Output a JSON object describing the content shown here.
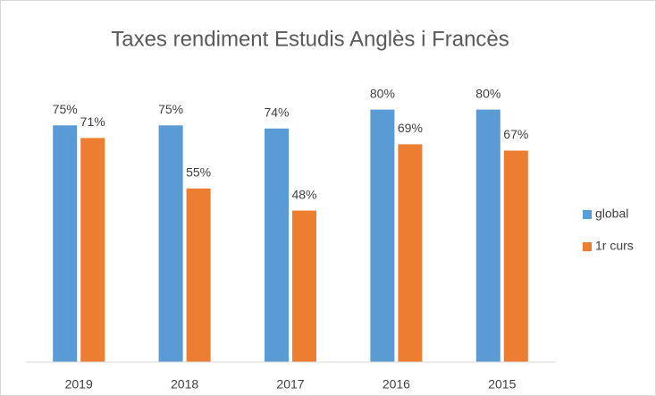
{
  "chart_data": {
    "type": "bar",
    "title": "Taxes rendiment Estudis Anglès i Francès",
    "categories": [
      "2019",
      "2018",
      "2017",
      "2016",
      "2015"
    ],
    "series": [
      {
        "name": "global",
        "color": "#5b9bd5",
        "values": [
          75,
          75,
          74,
          80,
          80
        ],
        "value_labels": [
          "75%",
          "75%",
          "74%",
          "80%",
          "80%"
        ]
      },
      {
        "name": "1r curs",
        "color": "#ed7d31",
        "values": [
          71,
          55,
          48,
          69,
          67
        ],
        "value_labels": [
          "71%",
          "55%",
          "48%",
          "69%",
          "67%"
        ]
      }
    ],
    "ylim": [
      0,
      100
    ],
    "legend": "right"
  }
}
